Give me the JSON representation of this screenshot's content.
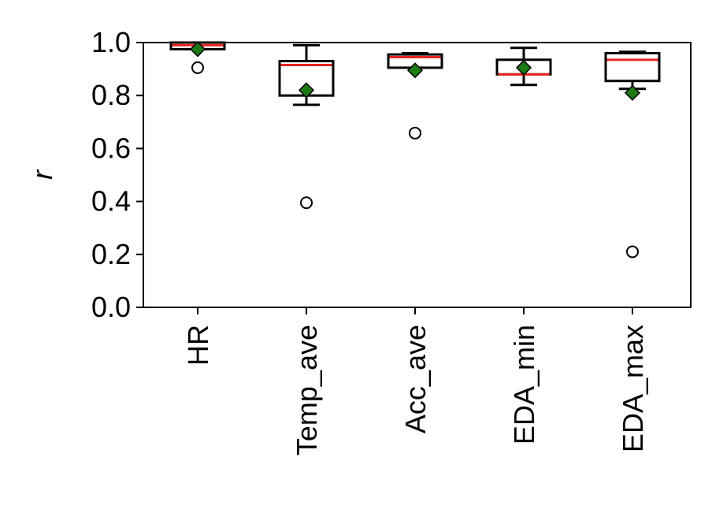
{
  "chart_data": {
    "type": "box",
    "ylabel": "r",
    "ylim": [
      0.0,
      1.0
    ],
    "y_ticks": [
      "0.0",
      "0.2",
      "0.4",
      "0.6",
      "0.8",
      "1.0"
    ],
    "categories": [
      "HR",
      "Temp_ave",
      "Acc_ave",
      "EDA_min",
      "EDA_max"
    ],
    "boxes": [
      {
        "category": "HR",
        "whisker_low": 0.975,
        "q1": 0.975,
        "median": 0.99,
        "q3": 1.0,
        "whisker_high": 1.0,
        "mean": 0.975,
        "outliers": [
          0.905
        ]
      },
      {
        "category": "Temp_ave",
        "whisker_low": 0.765,
        "q1": 0.8,
        "median": 0.915,
        "q3": 0.93,
        "whisker_high": 0.99,
        "mean": 0.82,
        "outliers": [
          0.395
        ]
      },
      {
        "category": "Acc_ave",
        "whisker_low": 0.905,
        "q1": 0.905,
        "median": 0.945,
        "q3": 0.955,
        "whisker_high": 0.96,
        "mean": 0.895,
        "outliers": [
          0.658
        ]
      },
      {
        "category": "EDA_min",
        "whisker_low": 0.84,
        "q1": 0.88,
        "median": 0.88,
        "q3": 0.935,
        "whisker_high": 0.98,
        "mean": 0.905,
        "outliers": []
      },
      {
        "category": "EDA_max",
        "whisker_low": 0.825,
        "q1": 0.855,
        "median": 0.935,
        "q3": 0.96,
        "whisker_high": 0.965,
        "mean": 0.81,
        "outliers": [
          0.21
        ]
      }
    ],
    "legend": "none",
    "grid": false,
    "colors": {
      "box": "#000000",
      "median": "#e8261f",
      "mean": "#1a7a14",
      "outlier": "#000000"
    }
  }
}
